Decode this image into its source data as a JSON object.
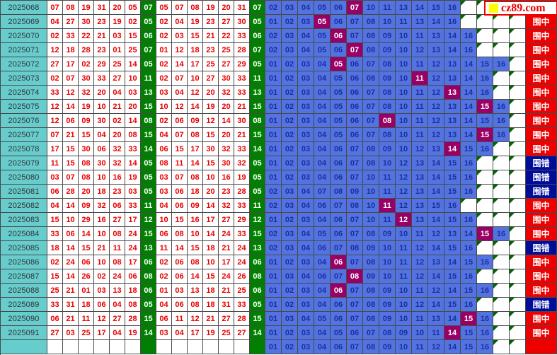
{
  "ui": {
    "logo_text": "cz89.com",
    "logo_icon": "yellow-square-icon"
  },
  "legend": {
    "hit_label": "围中",
    "miss_label": "围错"
  },
  "colors": {
    "border": "#4a4a4a",
    "cyan": "#66cccc",
    "green": "#008000",
    "blue": "#5273e0",
    "blue_text": "#1c2f9e",
    "magenta": "#990066",
    "red_text": "#e80000",
    "hit_red": "#ee0000",
    "miss_navy": "#000d99",
    "triangle_green": "#006600",
    "logo_yellow": "#ffff00"
  },
  "chart_data": {
    "type": "table",
    "blue_slots": 16,
    "rows": [
      {
        "period": "2025068",
        "draw": [
          "07",
          "08",
          "19",
          "31",
          "20",
          "05"
        ],
        "blue": "07",
        "sorted": [
          "05",
          "07",
          "08",
          "19",
          "20",
          "31"
        ],
        "enclosure": [
          "02",
          "03",
          "04",
          "05",
          "06",
          "07",
          "10",
          "11",
          "13",
          "14",
          "15",
          "16"
        ],
        "result": "hit"
      },
      {
        "period": "2025069",
        "draw": [
          "04",
          "27",
          "30",
          "23",
          "19",
          "02"
        ],
        "blue": "05",
        "sorted": [
          "02",
          "04",
          "19",
          "23",
          "27",
          "30"
        ],
        "enclosure": [
          "01",
          "02",
          "03",
          "05",
          "06",
          "07",
          "08",
          "10",
          "11",
          "13",
          "14",
          "16"
        ],
        "result": "hit"
      },
      {
        "period": "2025070",
        "draw": [
          "02",
          "33",
          "22",
          "21",
          "03",
          "15"
        ],
        "blue": "06",
        "sorted": [
          "02",
          "03",
          "15",
          "21",
          "22",
          "33"
        ],
        "enclosure": [
          "02",
          "03",
          "04",
          "05",
          "06",
          "07",
          "08",
          "09",
          "10",
          "11",
          "13",
          "14",
          "16"
        ],
        "result": "hit"
      },
      {
        "period": "2025071",
        "draw": [
          "12",
          "18",
          "28",
          "23",
          "01",
          "25"
        ],
        "blue": "07",
        "sorted": [
          "01",
          "12",
          "18",
          "23",
          "25",
          "28"
        ],
        "enclosure": [
          "02",
          "03",
          "04",
          "05",
          "06",
          "07",
          "08",
          "09",
          "10",
          "12",
          "13",
          "14",
          "16"
        ],
        "result": "hit"
      },
      {
        "period": "2025072",
        "draw": [
          "27",
          "17",
          "02",
          "29",
          "25",
          "14"
        ],
        "blue": "05",
        "sorted": [
          "02",
          "14",
          "17",
          "25",
          "27",
          "29"
        ],
        "enclosure": [
          "01",
          "02",
          "03",
          "04",
          "05",
          "06",
          "07",
          "08",
          "10",
          "11",
          "12",
          "13",
          "14",
          "15",
          "16"
        ],
        "result": "hit"
      },
      {
        "period": "2025073",
        "draw": [
          "02",
          "07",
          "30",
          "33",
          "27",
          "10"
        ],
        "blue": "11",
        "sorted": [
          "02",
          "07",
          "10",
          "27",
          "30",
          "33"
        ],
        "enclosure": [
          "01",
          "02",
          "03",
          "04",
          "05",
          "06",
          "08",
          "09",
          "10",
          "11",
          "12",
          "13",
          "14",
          "16"
        ],
        "result": "hit"
      },
      {
        "period": "2025074",
        "draw": [
          "33",
          "12",
          "32",
          "20",
          "04",
          "03"
        ],
        "blue": "13",
        "sorted": [
          "03",
          "04",
          "12",
          "20",
          "32",
          "33"
        ],
        "enclosure": [
          "01",
          "02",
          "03",
          "04",
          "05",
          "06",
          "07",
          "08",
          "10",
          "11",
          "12",
          "13",
          "14",
          "16"
        ],
        "result": "hit"
      },
      {
        "period": "2025075",
        "draw": [
          "12",
          "14",
          "19",
          "10",
          "21",
          "20"
        ],
        "blue": "15",
        "sorted": [
          "10",
          "12",
          "14",
          "19",
          "20",
          "21"
        ],
        "enclosure": [
          "01",
          "02",
          "03",
          "04",
          "05",
          "06",
          "07",
          "08",
          "10",
          "11",
          "12",
          "13",
          "14",
          "15",
          "16"
        ],
        "result": "hit"
      },
      {
        "period": "2025076",
        "draw": [
          "12",
          "06",
          "09",
          "30",
          "02",
          "14"
        ],
        "blue": "08",
        "sorted": [
          "02",
          "06",
          "09",
          "12",
          "14",
          "30"
        ],
        "enclosure": [
          "01",
          "02",
          "03",
          "04",
          "05",
          "06",
          "07",
          "08",
          "10",
          "11",
          "12",
          "13",
          "14",
          "15",
          "16"
        ],
        "result": "hit"
      },
      {
        "period": "2025077",
        "draw": [
          "07",
          "21",
          "15",
          "04",
          "20",
          "08"
        ],
        "blue": "15",
        "sorted": [
          "04",
          "07",
          "08",
          "15",
          "20",
          "21"
        ],
        "enclosure": [
          "01",
          "02",
          "03",
          "04",
          "05",
          "06",
          "07",
          "08",
          "10",
          "11",
          "12",
          "13",
          "14",
          "15",
          "16"
        ],
        "result": "hit"
      },
      {
        "period": "2025078",
        "draw": [
          "17",
          "15",
          "30",
          "06",
          "32",
          "33"
        ],
        "blue": "14",
        "sorted": [
          "06",
          "15",
          "17",
          "30",
          "32",
          "33"
        ],
        "enclosure": [
          "01",
          "02",
          "03",
          "04",
          "06",
          "07",
          "08",
          "09",
          "10",
          "12",
          "13",
          "14",
          "15",
          "16"
        ],
        "result": "hit"
      },
      {
        "period": "2025079",
        "draw": [
          "11",
          "15",
          "08",
          "30",
          "32",
          "14"
        ],
        "blue": "05",
        "sorted": [
          "08",
          "11",
          "14",
          "15",
          "30",
          "32"
        ],
        "enclosure": [
          "01",
          "02",
          "03",
          "04",
          "06",
          "07",
          "08",
          "10",
          "12",
          "13",
          "14",
          "15",
          "16"
        ],
        "result": "miss"
      },
      {
        "period": "2025080",
        "draw": [
          "03",
          "07",
          "08",
          "10",
          "16",
          "19"
        ],
        "blue": "05",
        "sorted": [
          "03",
          "07",
          "08",
          "10",
          "16",
          "19"
        ],
        "enclosure": [
          "01",
          "02",
          "03",
          "04",
          "06",
          "07",
          "10",
          "11",
          "12",
          "13",
          "14",
          "15",
          "16"
        ],
        "result": "miss"
      },
      {
        "period": "2025081",
        "draw": [
          "06",
          "28",
          "20",
          "18",
          "23",
          "03"
        ],
        "blue": "05",
        "sorted": [
          "03",
          "06",
          "18",
          "20",
          "23",
          "28"
        ],
        "enclosure": [
          "02",
          "03",
          "04",
          "07",
          "08",
          "09",
          "10",
          "11",
          "12",
          "13",
          "14",
          "15",
          "16"
        ],
        "result": "miss"
      },
      {
        "period": "2025082",
        "draw": [
          "04",
          "14",
          "09",
          "32",
          "06",
          "33"
        ],
        "blue": "11",
        "sorted": [
          "04",
          "06",
          "09",
          "14",
          "32",
          "33"
        ],
        "enclosure": [
          "02",
          "03",
          "04",
          "06",
          "07",
          "08",
          "10",
          "11",
          "12",
          "13",
          "15",
          "16"
        ],
        "result": "hit"
      },
      {
        "period": "2025083",
        "draw": [
          "15",
          "10",
          "29",
          "16",
          "27",
          "17"
        ],
        "blue": "12",
        "sorted": [
          "10",
          "15",
          "16",
          "17",
          "27",
          "29"
        ],
        "enclosure": [
          "01",
          "02",
          "03",
          "04",
          "06",
          "07",
          "10",
          "11",
          "12",
          "13",
          "14",
          "15",
          "16"
        ],
        "result": "hit"
      },
      {
        "period": "2025084",
        "draw": [
          "33",
          "06",
          "14",
          "10",
          "08",
          "24"
        ],
        "blue": "15",
        "sorted": [
          "06",
          "08",
          "10",
          "14",
          "24",
          "33"
        ],
        "enclosure": [
          "02",
          "03",
          "04",
          "05",
          "06",
          "07",
          "08",
          "09",
          "10",
          "11",
          "12",
          "13",
          "14",
          "15",
          "16"
        ],
        "result": "hit"
      },
      {
        "period": "2025085",
        "draw": [
          "18",
          "14",
          "15",
          "21",
          "11",
          "24"
        ],
        "blue": "13",
        "sorted": [
          "11",
          "14",
          "15",
          "18",
          "21",
          "24"
        ],
        "enclosure": [
          "02",
          "03",
          "04",
          "06",
          "07",
          "08",
          "09",
          "10",
          "11",
          "12",
          "14",
          "15",
          "16"
        ],
        "result": "miss"
      },
      {
        "period": "2025086",
        "draw": [
          "02",
          "24",
          "06",
          "10",
          "08",
          "17"
        ],
        "blue": "06",
        "sorted": [
          "02",
          "06",
          "08",
          "10",
          "17",
          "24"
        ],
        "enclosure": [
          "01",
          "02",
          "03",
          "04",
          "06",
          "07",
          "08",
          "10",
          "11",
          "12",
          "13",
          "14",
          "15",
          "16"
        ],
        "result": "hit"
      },
      {
        "period": "2025087",
        "draw": [
          "15",
          "14",
          "26",
          "02",
          "24",
          "06"
        ],
        "blue": "08",
        "sorted": [
          "02",
          "06",
          "14",
          "15",
          "24",
          "26"
        ],
        "enclosure": [
          "01",
          "03",
          "04",
          "06",
          "07",
          "08",
          "09",
          "10",
          "11",
          "12",
          "14",
          "15",
          "16"
        ],
        "result": "hit"
      },
      {
        "period": "2025088",
        "draw": [
          "25",
          "21",
          "01",
          "03",
          "13",
          "18"
        ],
        "blue": "06",
        "sorted": [
          "01",
          "03",
          "13",
          "18",
          "21",
          "25"
        ],
        "enclosure": [
          "01",
          "02",
          "03",
          "04",
          "06",
          "07",
          "08",
          "09",
          "10",
          "11",
          "12",
          "14",
          "15",
          "16"
        ],
        "result": "hit"
      },
      {
        "period": "2025089",
        "draw": [
          "33",
          "31",
          "18",
          "06",
          "04",
          "08"
        ],
        "blue": "05",
        "sorted": [
          "04",
          "06",
          "08",
          "18",
          "31",
          "33"
        ],
        "enclosure": [
          "01",
          "02",
          "03",
          "04",
          "06",
          "07",
          "08",
          "09",
          "10",
          "12",
          "14",
          "15",
          "16"
        ],
        "result": "miss"
      },
      {
        "period": "2025090",
        "draw": [
          "06",
          "21",
          "11",
          "12",
          "27",
          "28"
        ],
        "blue": "15",
        "sorted": [
          "06",
          "11",
          "12",
          "21",
          "27",
          "28"
        ],
        "enclosure": [
          "01",
          "03",
          "04",
          "05",
          "06",
          "07",
          "08",
          "09",
          "10",
          "11",
          "13",
          "14",
          "15",
          "16"
        ],
        "result": "hit"
      },
      {
        "period": "2025091",
        "draw": [
          "27",
          "03",
          "25",
          "17",
          "04",
          "19"
        ],
        "blue": "14",
        "sorted": [
          "03",
          "04",
          "17",
          "19",
          "25",
          "27"
        ],
        "enclosure": [
          "01",
          "02",
          "03",
          "04",
          "05",
          "06",
          "07",
          "08",
          "09",
          "10",
          "11",
          "14",
          "15",
          "16"
        ],
        "result": "hit"
      },
      {
        "period": "",
        "draw": [
          "",
          "",
          "",
          "",
          "",
          ""
        ],
        "blue": "",
        "sorted": [
          "",
          "",
          "",
          "",
          "",
          ""
        ],
        "enclosure": [
          "01",
          "02",
          "03",
          "04",
          "06",
          "07",
          "08",
          "09",
          "10",
          "11",
          "12",
          "14",
          "15",
          "16"
        ],
        "result": ""
      }
    ]
  }
}
